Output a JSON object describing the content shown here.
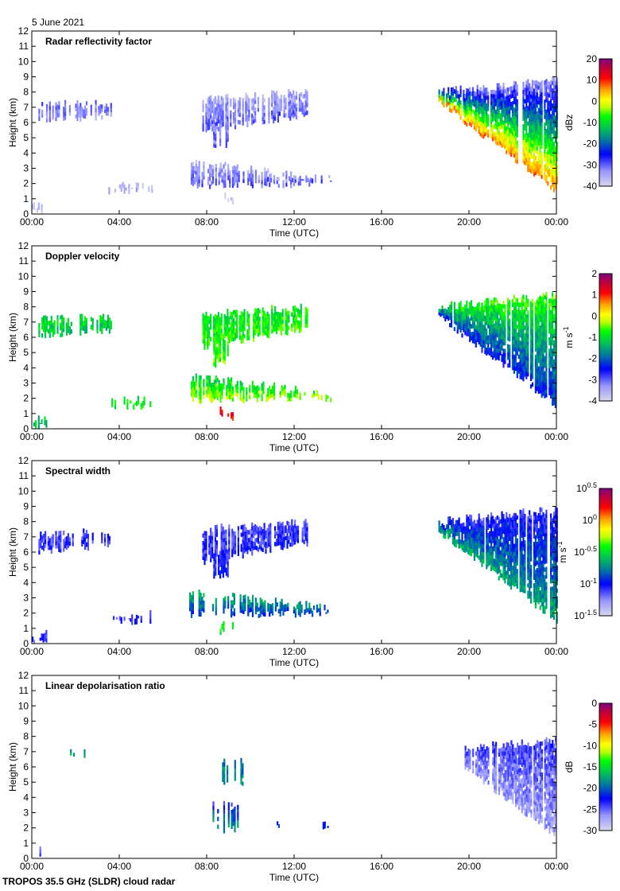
{
  "header": {
    "date": "5 June 2021"
  },
  "footer": {
    "instrument": "TROPOS 35.5 GHz (SLDR) cloud radar"
  },
  "chart_data": [
    {
      "type": "heatmap",
      "title": "Radar reflectivity factor",
      "xlabel": "Time (UTC)",
      "ylabel": "Height (km)",
      "xticks": [
        "00:00",
        "04:00",
        "08:00",
        "12:00",
        "16:00",
        "20:00",
        "00:00"
      ],
      "xlim_hours": [
        0,
        24
      ],
      "ylim": [
        0,
        12
      ],
      "yticks": [
        "0",
        "1",
        "2",
        "3",
        "4",
        "5",
        "6",
        "7",
        "8",
        "9",
        "10",
        "11",
        "12"
      ],
      "colorbar": {
        "unit": "dBz",
        "unit_sup": "",
        "range": [
          -40,
          20
        ],
        "log": false,
        "ticks": [
          {
            "v": "20"
          },
          {
            "v": "10"
          },
          {
            "v": "0"
          },
          {
            "v": "-10"
          },
          {
            "v": "-20"
          },
          {
            "v": "-30"
          },
          {
            "v": "-40"
          }
        ]
      },
      "regions": [
        {
          "t": [
            0.3,
            3.6
          ],
          "top": [
            7.2,
            7.3
          ],
          "base": [
            6.1,
            6.5
          ],
          "val": [
            -30,
            -33
          ],
          "density": 0.55
        },
        {
          "t": [
            7.8,
            12.6
          ],
          "top": [
            7.5,
            8.0
          ],
          "base": [
            5.4,
            6.6
          ],
          "val": [
            -36,
            -30
          ],
          "density": 0.8
        },
        {
          "t": [
            8.3,
            9.0
          ],
          "top": [
            6.0,
            6.0
          ],
          "base": [
            4.2,
            4.6
          ],
          "val": [
            -33,
            -30
          ],
          "density": 0.7
        },
        {
          "t": [
            7.2,
            13.7
          ],
          "top": [
            3.4,
            2.3
          ],
          "base": [
            1.9,
            2.0
          ],
          "val": [
            -36,
            -30
          ],
          "density": 0.6
        },
        {
          "t": [
            8.6,
            9.2
          ],
          "top": [
            1.2,
            1.2
          ],
          "base": [
            0.8,
            0.8
          ],
          "val": [
            -38,
            -38
          ],
          "density": 0.5
        },
        {
          "t": [
            3.5,
            5.5
          ],
          "top": [
            1.9,
            1.9
          ],
          "base": [
            1.5,
            1.5
          ],
          "val": [
            -38,
            -36
          ],
          "density": 0.6
        },
        {
          "t": [
            0.0,
            0.7
          ],
          "top": [
            0.6,
            0.6
          ],
          "base": [
            0.2,
            0.2
          ],
          "val": [
            -38,
            -38
          ],
          "density": 0.6
        },
        {
          "t": [
            18.6,
            24
          ],
          "top": [
            8.0,
            8.8
          ],
          "base": [
            7.4,
            1.5
          ],
          "val": [
            -34,
            6
          ],
          "density": 0.9
        }
      ]
    },
    {
      "type": "heatmap",
      "title": "Doppler velocity",
      "xlabel": "Time (UTC)",
      "ylabel": "Height (km)",
      "xticks": [
        "00:00",
        "04:00",
        "08:00",
        "12:00",
        "16:00",
        "20:00",
        "00:00"
      ],
      "xlim_hours": [
        0,
        24
      ],
      "ylim": [
        0,
        12
      ],
      "yticks": [
        "0",
        "1",
        "2",
        "3",
        "4",
        "5",
        "6",
        "7",
        "8",
        "9",
        "10",
        "11",
        "12"
      ],
      "colorbar": {
        "unit": "m s",
        "unit_sup": "-1",
        "range": [
          -4,
          2
        ],
        "log": false,
        "ticks": [
          {
            "v": "2"
          },
          {
            "v": "1"
          },
          {
            "v": "0"
          },
          {
            "v": "-1"
          },
          {
            "v": "-2"
          },
          {
            "v": "-3"
          },
          {
            "v": "-4"
          }
        ]
      },
      "regions": [
        {
          "t": [
            0.3,
            3.6
          ],
          "top": [
            7.2,
            7.3
          ],
          "base": [
            6.1,
            6.5
          ],
          "val": [
            -1.0,
            -1.2
          ],
          "density": 0.55
        },
        {
          "t": [
            7.8,
            12.6
          ],
          "top": [
            7.5,
            8.0
          ],
          "base": [
            5.4,
            6.6
          ],
          "val": [
            -0.9,
            -0.7
          ],
          "density": 0.85
        },
        {
          "t": [
            8.3,
            9.0
          ],
          "top": [
            6.0,
            6.0
          ],
          "base": [
            4.2,
            4.6
          ],
          "val": [
            -0.8,
            -0.6
          ],
          "density": 0.7
        },
        {
          "t": [
            7.2,
            13.7
          ],
          "top": [
            3.4,
            2.3
          ],
          "base": [
            1.9,
            2.0
          ],
          "val": [
            -1.2,
            -0.3
          ],
          "density": 0.65
        },
        {
          "t": [
            8.6,
            9.2
          ],
          "top": [
            1.2,
            1.2
          ],
          "base": [
            0.8,
            0.8
          ],
          "val": [
            1.2,
            1.2
          ],
          "density": 0.5
        },
        {
          "t": [
            3.5,
            5.5
          ],
          "top": [
            1.9,
            1.9
          ],
          "base": [
            1.5,
            1.5
          ],
          "val": [
            -0.8,
            -0.8
          ],
          "density": 0.6
        },
        {
          "t": [
            0.0,
            0.7
          ],
          "top": [
            0.6,
            0.6
          ],
          "base": [
            0.2,
            0.2
          ],
          "val": [
            -1.2,
            -1.4
          ],
          "density": 0.6
        },
        {
          "t": [
            18.6,
            24
          ],
          "top": [
            8.0,
            8.8
          ],
          "base": [
            7.4,
            1.5
          ],
          "val": [
            -0.6,
            -2.4
          ],
          "density": 0.9
        }
      ]
    },
    {
      "type": "heatmap",
      "title": "Spectral width",
      "xlabel": "Time (UTC)",
      "ylabel": "Height (km)",
      "xticks": [
        "00:00",
        "04:00",
        "08:00",
        "12:00",
        "16:00",
        "20:00",
        "00:00"
      ],
      "xlim_hours": [
        0,
        24
      ],
      "ylim": [
        0,
        12
      ],
      "yticks": [
        "0",
        "1",
        "2",
        "3",
        "4",
        "5",
        "6",
        "7",
        "8",
        "9",
        "10",
        "11",
        "12"
      ],
      "colorbar": {
        "unit": "m s",
        "unit_sup": "-1",
        "range": [
          -1.5,
          0.5
        ],
        "log": true,
        "ticks": [
          {
            "v": "10",
            "sup": "0.5"
          },
          {
            "v": "10",
            "sup": "0"
          },
          {
            "v": "10",
            "sup": "-0.5"
          },
          {
            "v": "10",
            "sup": "-1"
          },
          {
            "v": "10",
            "sup": "-1.5"
          }
        ]
      },
      "regions": [
        {
          "t": [
            0.3,
            3.6
          ],
          "top": [
            7.2,
            7.3
          ],
          "base": [
            6.1,
            6.5
          ],
          "val": [
            -1.1,
            -1.1
          ],
          "density": 0.55
        },
        {
          "t": [
            7.8,
            12.6
          ],
          "top": [
            7.5,
            8.0
          ],
          "base": [
            5.4,
            6.6
          ],
          "val": [
            -1.15,
            -1.05
          ],
          "density": 0.85
        },
        {
          "t": [
            8.3,
            9.0
          ],
          "top": [
            6.0,
            6.0
          ],
          "base": [
            4.2,
            4.6
          ],
          "val": [
            -1.1,
            -1.0
          ],
          "density": 0.7
        },
        {
          "t": [
            7.2,
            13.7
          ],
          "top": [
            3.4,
            2.3
          ],
          "base": [
            1.9,
            2.0
          ],
          "val": [
            -0.6,
            -0.9
          ],
          "density": 0.65
        },
        {
          "t": [
            8.6,
            9.2
          ],
          "top": [
            1.2,
            1.2
          ],
          "base": [
            0.8,
            0.8
          ],
          "val": [
            -0.5,
            -0.5
          ],
          "density": 0.5
        },
        {
          "t": [
            3.5,
            5.5
          ],
          "top": [
            1.9,
            1.9
          ],
          "base": [
            1.5,
            1.5
          ],
          "val": [
            -1.1,
            -1.1
          ],
          "density": 0.6
        },
        {
          "t": [
            0.0,
            0.7
          ],
          "top": [
            0.6,
            0.6
          ],
          "base": [
            0.2,
            0.2
          ],
          "val": [
            -1.1,
            -1.1
          ],
          "density": 0.6
        },
        {
          "t": [
            18.6,
            24
          ],
          "top": [
            8.0,
            8.8
          ],
          "base": [
            7.4,
            1.5
          ],
          "val": [
            -1.1,
            -0.65
          ],
          "density": 0.9
        }
      ]
    },
    {
      "type": "heatmap",
      "title": "Linear depolarisation ratio",
      "xlabel": "Time (UTC)",
      "ylabel": "Height (km)",
      "xticks": [
        "00:00",
        "04:00",
        "08:00",
        "12:00",
        "16:00",
        "20:00",
        "00:00"
      ],
      "xlim_hours": [
        0,
        24
      ],
      "ylim": [
        0,
        12
      ],
      "yticks": [
        "0",
        "1",
        "2",
        "3",
        "4",
        "5",
        "6",
        "7",
        "8",
        "9",
        "10",
        "11",
        "12"
      ],
      "colorbar": {
        "unit": "dB",
        "unit_sup": "",
        "range": [
          -30,
          0
        ],
        "log": false,
        "ticks": [
          {
            "v": "0"
          },
          {
            "v": "-5"
          },
          {
            "v": "-10"
          },
          {
            "v": "-15"
          },
          {
            "v": "-20"
          },
          {
            "v": "-25"
          },
          {
            "v": "-30"
          }
        ]
      },
      "regions": [
        {
          "t": [
            1.4,
            2.8
          ],
          "top": [
            7.0,
            6.9
          ],
          "base": [
            6.6,
            6.5
          ],
          "val": [
            -18,
            -18
          ],
          "density": 0.35
        },
        {
          "t": [
            8.7,
            9.7
          ],
          "top": [
            6.3,
            6.3
          ],
          "base": [
            5.0,
            5.0
          ],
          "val": [
            -20,
            -18
          ],
          "density": 0.5
        },
        {
          "t": [
            8.2,
            9.4
          ],
          "top": [
            3.5,
            3.5
          ],
          "base": [
            1.9,
            1.9
          ],
          "val": [
            -24,
            -18
          ],
          "density": 0.5
        },
        {
          "t": [
            11.2,
            11.4
          ],
          "top": [
            2.3,
            2.3
          ],
          "base": [
            2.0,
            2.0
          ],
          "val": [
            -22,
            -22
          ],
          "density": 0.5
        },
        {
          "t": [
            13.3,
            13.7
          ],
          "top": [
            2.3,
            2.3
          ],
          "base": [
            2.0,
            2.0
          ],
          "val": [
            -22,
            -22
          ],
          "density": 0.4
        },
        {
          "t": [
            0.0,
            0.5
          ],
          "top": [
            0.6,
            0.6
          ],
          "base": [
            0.3,
            0.3
          ],
          "val": [
            -25,
            -25
          ],
          "density": 0.4
        },
        {
          "t": [
            19.8,
            24
          ],
          "top": [
            7.2,
            7.8
          ],
          "base": [
            6.0,
            1.5
          ],
          "val": [
            -24,
            -27
          ],
          "density": 0.85
        }
      ]
    }
  ]
}
